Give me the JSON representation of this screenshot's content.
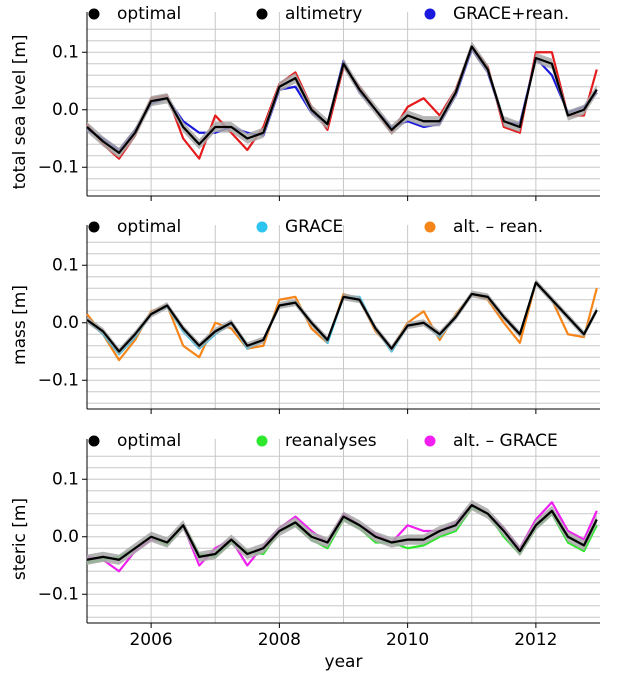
{
  "chart_data": [
    {
      "type": "line",
      "ylabel": "total sea level [m]",
      "x": [
        2005.0,
        2005.25,
        2005.5,
        2005.75,
        2006.0,
        2006.25,
        2006.5,
        2006.75,
        2007.0,
        2007.25,
        2007.5,
        2007.75,
        2008.0,
        2008.25,
        2008.5,
        2008.75,
        2009.0,
        2009.25,
        2009.5,
        2009.75,
        2010.0,
        2010.25,
        2010.5,
        2010.75,
        2011.0,
        2011.25,
        2011.5,
        2011.75,
        2012.0,
        2012.25,
        2012.5,
        2012.75,
        2012.95
      ],
      "series": [
        {
          "name": "altimetry",
          "color": "#e41a1c",
          "legend_color": "#000000",
          "values": [
            -0.025,
            -0.06,
            -0.085,
            -0.045,
            0.02,
            0.025,
            -0.05,
            -0.085,
            -0.01,
            -0.04,
            -0.07,
            -0.03,
            0.045,
            0.065,
            0.005,
            -0.035,
            0.075,
            0.04,
            0.0,
            -0.04,
            0.005,
            0.02,
            -0.01,
            0.035,
            0.11,
            0.075,
            -0.03,
            -0.04,
            0.1,
            0.1,
            -0.01,
            -0.01,
            0.07
          ]
        },
        {
          "name": "GRACE+rean.",
          "color": "#1a1adf",
          "legend_color": "#1a1adf",
          "values": [
            -0.035,
            -0.05,
            -0.07,
            -0.035,
            0.01,
            0.02,
            -0.02,
            -0.04,
            -0.04,
            -0.03,
            -0.04,
            -0.045,
            0.035,
            0.04,
            -0.005,
            -0.025,
            0.085,
            0.03,
            0.0,
            -0.03,
            -0.02,
            -0.03,
            -0.025,
            0.025,
            0.105,
            0.065,
            -0.02,
            -0.025,
            0.09,
            0.06,
            -0.005,
            0.005,
            0.03
          ]
        },
        {
          "name": "optimal",
          "color": "#000000",
          "legend_color": "#000000",
          "band": true,
          "error": 0.009,
          "values": [
            -0.03,
            -0.055,
            -0.075,
            -0.04,
            0.015,
            0.02,
            -0.03,
            -0.06,
            -0.03,
            -0.03,
            -0.05,
            -0.04,
            0.04,
            0.055,
            0.0,
            -0.025,
            0.08,
            0.035,
            0.0,
            -0.035,
            -0.01,
            -0.02,
            -0.02,
            0.03,
            0.11,
            0.07,
            -0.02,
            -0.03,
            0.09,
            0.08,
            -0.01,
            0.0,
            0.035
          ]
        }
      ],
      "legend_order": [
        2,
        0,
        1
      ],
      "xlim": [
        2005,
        2013
      ],
      "xticks": [
        2006,
        2008,
        2010,
        2012
      ],
      "xminorticks": [
        2007,
        2009,
        2011
      ],
      "xticklabels": false,
      "ylim": [
        -0.15,
        0.17
      ],
      "yticks": [
        {
          "value": -0.1,
          "label": "−0.1"
        },
        {
          "value": 0,
          "label": "0.0"
        },
        0.1
      ],
      "yminorticks": [
        -0.14,
        -0.12,
        -0.1,
        -0.08,
        -0.06,
        -0.04,
        -0.02,
        0,
        0.02,
        0.04,
        0.06,
        0.08,
        0.1,
        0.12,
        0.14
      ],
      "grid": true
    },
    {
      "type": "line",
      "ylabel": "mass [m]",
      "x": [
        2005.0,
        2005.25,
        2005.5,
        2005.75,
        2006.0,
        2006.25,
        2006.5,
        2006.75,
        2007.0,
        2007.25,
        2007.5,
        2007.75,
        2008.0,
        2008.25,
        2008.5,
        2008.75,
        2009.0,
        2009.25,
        2009.5,
        2009.75,
        2010.0,
        2010.25,
        2010.5,
        2010.75,
        2011.0,
        2011.25,
        2011.5,
        2011.75,
        2012.0,
        2012.25,
        2012.5,
        2012.75,
        2012.95
      ],
      "series": [
        {
          "name": "alt. – rean.",
          "color": "#f58518",
          "legend_color": "#f58518",
          "values": [
            0.015,
            -0.02,
            -0.065,
            -0.03,
            0.02,
            0.03,
            -0.04,
            -0.06,
            0.0,
            -0.01,
            -0.045,
            -0.04,
            0.04,
            0.045,
            -0.01,
            -0.035,
            0.05,
            0.04,
            -0.015,
            -0.045,
            0.0,
            0.02,
            -0.03,
            0.015,
            0.05,
            0.04,
            0.0,
            -0.035,
            0.07,
            0.04,
            -0.02,
            -0.025,
            0.06
          ]
        },
        {
          "name": "GRACE",
          "color": "#2ec4f0",
          "legend_color": "#2ec4f0",
          "values": [
            0.005,
            -0.02,
            -0.055,
            -0.025,
            0.015,
            0.028,
            -0.015,
            -0.045,
            -0.02,
            0.0,
            -0.045,
            -0.03,
            0.03,
            0.035,
            0.0,
            -0.035,
            0.045,
            0.045,
            -0.01,
            -0.05,
            -0.005,
            0.0,
            -0.025,
            0.01,
            0.05,
            0.045,
            0.01,
            -0.02,
            0.07,
            0.04,
            0.01,
            -0.02,
            0.022
          ]
        },
        {
          "name": "optimal",
          "color": "#000000",
          "legend_color": "#000000",
          "band": true,
          "error": 0.006,
          "values": [
            0.005,
            -0.015,
            -0.05,
            -0.02,
            0.015,
            0.03,
            -0.01,
            -0.04,
            -0.015,
            0.0,
            -0.04,
            -0.03,
            0.03,
            0.035,
            0.0,
            -0.03,
            0.045,
            0.04,
            -0.01,
            -0.045,
            -0.005,
            0.0,
            -0.02,
            0.01,
            0.05,
            0.045,
            0.01,
            -0.02,
            0.07,
            0.04,
            0.01,
            -0.02,
            0.022
          ]
        }
      ],
      "legend_order": [
        2,
        1,
        0
      ],
      "xlim": [
        2005,
        2013
      ],
      "xticks": [
        2006,
        2008,
        2010,
        2012
      ],
      "xminorticks": [
        2007,
        2009,
        2011
      ],
      "xticklabels": false,
      "ylim": [
        -0.15,
        0.17
      ],
      "yticks": [
        {
          "value": -0.1,
          "label": "−0.1"
        },
        {
          "value": 0,
          "label": "0.0"
        },
        0.1
      ],
      "yminorticks": [
        -0.14,
        -0.12,
        -0.1,
        -0.08,
        -0.06,
        -0.04,
        -0.02,
        0,
        0.02,
        0.04,
        0.06,
        0.08,
        0.1,
        0.12,
        0.14
      ],
      "grid": true
    },
    {
      "type": "line",
      "ylabel": "steric [m]",
      "xlabel": "year",
      "x": [
        2005.0,
        2005.25,
        2005.5,
        2005.75,
        2006.0,
        2006.25,
        2006.5,
        2006.75,
        2007.0,
        2007.25,
        2007.5,
        2007.75,
        2008.0,
        2008.25,
        2008.5,
        2008.75,
        2009.0,
        2009.25,
        2009.5,
        2009.75,
        2010.0,
        2010.25,
        2010.5,
        2010.75,
        2011.0,
        2011.25,
        2011.5,
        2011.75,
        2012.0,
        2012.25,
        2012.5,
        2012.75,
        2012.95
      ],
      "series": [
        {
          "name": "alt. – GRACE",
          "color": "#f01ef0",
          "legend_color": "#f01ef0",
          "values": [
            -0.035,
            -0.04,
            -0.06,
            -0.025,
            -0.005,
            -0.01,
            0.02,
            -0.05,
            -0.02,
            -0.005,
            -0.05,
            -0.015,
            0.015,
            0.035,
            0.01,
            -0.01,
            0.04,
            0.02,
            0.005,
            -0.01,
            0.02,
            0.01,
            0.01,
            0.025,
            0.055,
            0.04,
            0.015,
            -0.02,
            0.03,
            0.06,
            0.01,
            -0.005,
            0.045
          ]
        },
        {
          "name": "reanalyses",
          "color": "#2ee82e",
          "legend_color": "#2ee82e",
          "values": [
            -0.045,
            -0.04,
            -0.035,
            -0.02,
            0.0,
            -0.015,
            0.02,
            -0.03,
            -0.035,
            -0.01,
            -0.025,
            -0.03,
            0.01,
            0.02,
            -0.005,
            -0.02,
            0.03,
            0.015,
            -0.01,
            -0.01,
            -0.02,
            -0.015,
            0.0,
            0.01,
            0.05,
            0.04,
            0.0,
            -0.03,
            0.015,
            0.04,
            -0.01,
            -0.025,
            0.02
          ]
        },
        {
          "name": "optimal",
          "color": "#000000",
          "legend_color": "#000000",
          "band": true,
          "error": 0.009,
          "values": [
            -0.04,
            -0.035,
            -0.04,
            -0.02,
            0.0,
            -0.01,
            0.02,
            -0.035,
            -0.03,
            -0.005,
            -0.03,
            -0.02,
            0.01,
            0.025,
            0.0,
            -0.01,
            0.035,
            0.02,
            0.0,
            -0.01,
            -0.005,
            -0.005,
            0.01,
            0.02,
            0.055,
            0.04,
            0.01,
            -0.025,
            0.02,
            0.045,
            0.0,
            -0.015,
            0.03
          ]
        }
      ],
      "legend_order": [
        2,
        1,
        0
      ],
      "xlim": [
        2005,
        2013
      ],
      "xticks": [
        2006,
        2008,
        2010,
        2012
      ],
      "xminorticks": [
        2007,
        2009,
        2011
      ],
      "xticklabels": true,
      "ylim": [
        -0.15,
        0.17
      ],
      "yticks": [
        {
          "value": -0.1,
          "label": "−0.1"
        },
        {
          "value": 0,
          "label": "0.0"
        },
        0.1
      ],
      "yminorticks": [
        -0.14,
        -0.12,
        -0.1,
        -0.08,
        -0.06,
        -0.04,
        -0.02,
        0,
        0.02,
        0.04,
        0.06,
        0.08,
        0.1,
        0.12,
        0.14
      ],
      "grid": true
    }
  ]
}
